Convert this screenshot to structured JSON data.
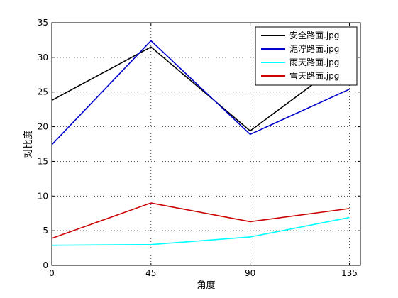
{
  "chart_data": {
    "type": "line",
    "title": "",
    "xlabel": "角度",
    "ylabel": "对比度",
    "x": [
      0,
      45,
      90,
      135
    ],
    "xticks": [
      0,
      45,
      90,
      135
    ],
    "xlim": [
      0,
      140
    ],
    "yticks": [
      0,
      5,
      10,
      15,
      20,
      25,
      30,
      35
    ],
    "ylim": [
      0,
      35
    ],
    "grid": true,
    "legend_position": "top-right",
    "series": [
      {
        "name": "安全路面.jpg",
        "color": "#000000",
        "values": [
          23.8,
          31.5,
          19.4,
          30.0
        ]
      },
      {
        "name": "泥泞路面.jpg",
        "color": "#0000cc",
        "values": [
          17.4,
          32.4,
          18.9,
          25.4
        ]
      },
      {
        "name": "雨天路面.jpg",
        "color": "#00ffff",
        "values": [
          2.9,
          3.0,
          4.1,
          6.9
        ]
      },
      {
        "name": "雪天路面.jpg",
        "color": "#cc0000",
        "values": [
          3.9,
          9.0,
          6.3,
          8.2
        ]
      }
    ]
  }
}
